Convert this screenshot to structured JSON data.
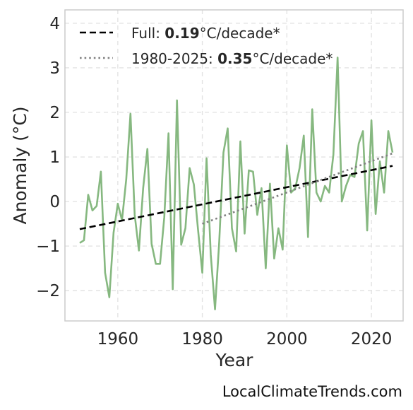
{
  "chart_data": {
    "type": "line",
    "xlabel": "Year",
    "ylabel": "Anomaly (°C)",
    "xlim": [
      1947.5,
      2027.5
    ],
    "ylim": [
      -2.68,
      4.3
    ],
    "xticks": [
      1960,
      1980,
      2000,
      2020
    ],
    "yticks": [
      -2,
      -1,
      0,
      1,
      2,
      3,
      4
    ],
    "grid": true,
    "legend_position": "top-left",
    "colors": {
      "anomaly": "#86b880",
      "full_trend": "#000000",
      "recent_trend": "#808080"
    },
    "series": [
      {
        "style": "solid",
        "x": [
          1951,
          1952,
          1953,
          1954,
          1955,
          1956,
          1957,
          1958,
          1959,
          1960,
          1961,
          1962,
          1963,
          1964,
          1965,
          1966,
          1967,
          1968,
          1969,
          1970,
          1971,
          1972,
          1973,
          1974,
          1975,
          1976,
          1977,
          1978,
          1979,
          1980,
          1981,
          1982,
          1983,
          1984,
          1985,
          1986,
          1987,
          1988,
          1989,
          1990,
          1991,
          1992,
          1993,
          1994,
          1995,
          1996,
          1997,
          1998,
          1999,
          2000,
          2001,
          2002,
          2003,
          2004,
          2005,
          2006,
          2007,
          2008,
          2009,
          2010,
          2011,
          2012,
          2013,
          2014,
          2015,
          2016,
          2017,
          2018,
          2019,
          2020,
          2021,
          2022,
          2023,
          2024,
          2025
        ],
        "y": [
          -0.93,
          -0.87,
          0.15,
          -0.2,
          -0.1,
          0.67,
          -1.6,
          -2.15,
          -0.7,
          -0.05,
          -0.42,
          0.5,
          1.97,
          -0.3,
          -1.1,
          0.3,
          1.18,
          -0.95,
          -1.4,
          -1.4,
          -0.35,
          1.53,
          -1.97,
          2.27,
          -0.97,
          -0.6,
          0.75,
          0.38,
          -0.65,
          -1.6,
          0.97,
          -1.2,
          -2.42,
          -0.9,
          1.1,
          1.64,
          -0.6,
          -1.12,
          1.35,
          -0.72,
          0.7,
          0.67,
          -0.3,
          0.3,
          -1.5,
          0.4,
          -1.28,
          -0.6,
          -1.08,
          1.26,
          0.2,
          0.3,
          0.75,
          1.48,
          -0.8,
          2.07,
          0.2,
          0.0,
          0.35,
          0.2,
          1.05,
          3.23,
          0.0,
          0.35,
          0.6,
          0.55,
          1.3,
          1.58,
          -0.65,
          1.82,
          -0.28,
          0.9,
          0.2,
          1.58,
          1.1
        ]
      },
      {
        "name": "Full: 0.19°C/decade*",
        "style": "dashed",
        "x": [
          1951,
          2025
        ],
        "y": [
          -0.62,
          0.8
        ]
      },
      {
        "name": "1980-2025: 0.35°C/decade*",
        "style": "dotted",
        "x": [
          1980,
          2025
        ],
        "y": [
          -0.5,
          1.08
        ]
      }
    ],
    "legend": [
      {
        "prefix": "Full: ",
        "bold": "0.19",
        "suffix": "°C/decade*"
      },
      {
        "prefix": "1980-2025: ",
        "bold": "0.35",
        "suffix": "°C/decade*"
      }
    ]
  },
  "credit": "LocalClimateTrends.com"
}
